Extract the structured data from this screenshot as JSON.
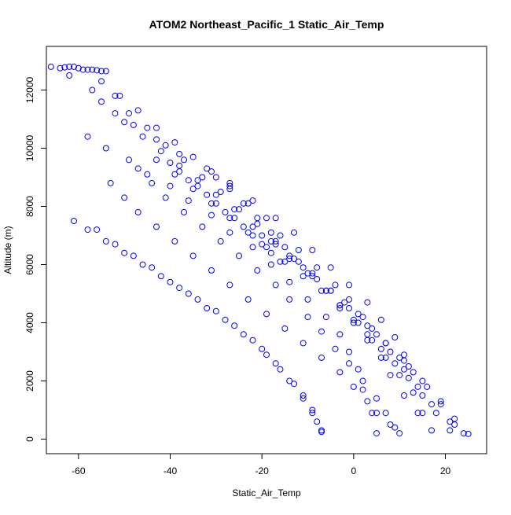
{
  "chart_data": {
    "type": "scatter",
    "title": "ATOM2 Northeast_Pacific_1 Static_Air_Temp",
    "xlabel": "Static_Air_Temp",
    "ylabel": "Altitude (m)",
    "xlim": [
      -67,
      29
    ],
    "ylim": [
      -500,
      13500
    ],
    "xticks": [
      -60,
      -40,
      -20,
      0,
      20
    ],
    "yticks": [
      0,
      2000,
      4000,
      6000,
      8000,
      10000,
      12000
    ],
    "grid": false,
    "legend": "none",
    "marker": "open-circle",
    "color": "#0000ff",
    "series": [
      {
        "x": [
          -66,
          -62,
          -57,
          -55,
          -52,
          -48,
          -43,
          -38,
          -32,
          -27,
          -22,
          -17,
          -13,
          -9,
          -5,
          -1,
          3,
          6,
          9,
          11,
          12
        ],
        "y": [
          12800,
          12500,
          12000,
          11600,
          11200,
          10800,
          10300,
          9800,
          9300,
          8800,
          8200,
          7600,
          7100,
          6500,
          5900,
          5300,
          4700,
          4100,
          3500,
          2900,
          2500
        ]
      },
      {
        "x": [
          -55,
          -51,
          -47,
          -43,
          -39,
          -35,
          -31,
          -27,
          -23,
          -19,
          -16,
          -12,
          -8,
          -4,
          -1,
          2,
          5,
          8,
          11,
          14,
          17,
          21,
          25
        ],
        "y": [
          12300,
          11800,
          11300,
          10700,
          10200,
          9700,
          9200,
          8700,
          8100,
          7600,
          7000,
          6500,
          5900,
          5300,
          4800,
          4200,
          3600,
          3000,
          2400,
          1800,
          1200,
          600,
          180
        ]
      },
      {
        "x": [
          -52,
          -49,
          -45,
          -41,
          -37,
          -33,
          -29,
          -25,
          -21,
          -17,
          -13,
          -9,
          -5,
          -1,
          3,
          7,
          11,
          15,
          19,
          22
        ],
        "y": [
          11800,
          11200,
          10700,
          10100,
          9600,
          9000,
          8500,
          7900,
          7400,
          6800,
          6200,
          5700,
          5100,
          4500,
          3900,
          3300,
          2700,
          2000,
          1300,
          500
        ]
      },
      {
        "x": [
          -50,
          -46,
          -42,
          -38,
          -34,
          -30,
          -26,
          -22,
          -18,
          -14,
          -10,
          -6,
          -3,
          0,
          3,
          6,
          8,
          11,
          14,
          17
        ],
        "y": [
          10900,
          10400,
          9900,
          9400,
          8900,
          8400,
          7900,
          7300,
          6800,
          6200,
          5700,
          5100,
          4600,
          4000,
          3400,
          2800,
          2200,
          1500,
          900,
          300
        ]
      },
      {
        "x": [
          -58,
          -54,
          -49,
          -45,
          -40,
          -36,
          -31,
          -27,
          -22,
          -18,
          -14,
          -10,
          -6,
          -3,
          -1,
          1,
          2,
          4,
          5
        ],
        "y": [
          10400,
          10000,
          9600,
          9100,
          8700,
          8200,
          7700,
          7100,
          6600,
          6000,
          5400,
          4800,
          4200,
          3600,
          3000,
          2400,
          1700,
          900,
          200
        ]
      },
      {
        "x": [
          -61,
          -58,
          -54,
          -50,
          -46,
          -42,
          -38,
          -34,
          -30,
          -26,
          -22,
          -19,
          -16,
          -13,
          -11,
          -9,
          -8,
          -7
        ],
        "y": [
          7500,
          7200,
          6800,
          6400,
          6000,
          5600,
          5200,
          4800,
          4400,
          3900,
          3400,
          2900,
          2400,
          1900,
          1400,
          1000,
          600,
          250
        ]
      },
      {
        "x": [
          -56,
          -52,
          -48,
          -44,
          -40,
          -36,
          -32,
          -28,
          -24,
          -20,
          -17,
          -14,
          -11,
          -9,
          -7
        ],
        "y": [
          7200,
          6700,
          6300,
          5900,
          5400,
          5000,
          4500,
          4100,
          3600,
          3100,
          2600,
          2000,
          1500,
          900,
          300
        ]
      },
      {
        "x": [
          -53,
          -50,
          -47,
          -43,
          -39,
          -35,
          -31,
          -27,
          -23,
          -19,
          -15,
          -11,
          -7,
          -3,
          0,
          3,
          5,
          8,
          10
        ],
        "y": [
          8800,
          8300,
          7800,
          7300,
          6800,
          6300,
          5800,
          5300,
          4800,
          4300,
          3800,
          3300,
          2800,
          2300,
          1800,
          1300,
          900,
          500,
          200
        ]
      },
      {
        "x": [
          -47,
          -44,
          -41,
          -37,
          -33,
          -29,
          -25,
          -21,
          -17,
          -14,
          -10,
          -7,
          -4,
          -1,
          2,
          5,
          7,
          9
        ],
        "y": [
          9300,
          8800,
          8300,
          7800,
          7300,
          6800,
          6300,
          5800,
          5300,
          4800,
          4200,
          3700,
          3100,
          2600,
          2000,
          1400,
          900,
          400
        ]
      },
      {
        "x": [
          -43,
          -39,
          -35,
          -31,
          -27,
          -23,
          -19,
          -15,
          -11,
          -7,
          -3,
          1,
          4,
          7,
          10,
          13,
          15
        ],
        "y": [
          9600,
          9100,
          8600,
          8100,
          7600,
          7100,
          6600,
          6100,
          5600,
          5100,
          4500,
          4000,
          3400,
          2800,
          2200,
          1600,
          900
        ]
      },
      {
        "x": [
          -30,
          -27,
          -24,
          -21,
          -18,
          -15,
          -12,
          -9,
          -6,
          -3,
          0,
          3,
          6,
          9,
          12,
          15,
          18,
          21
        ],
        "y": [
          9000,
          8600,
          8100,
          7600,
          7100,
          6600,
          6100,
          5600,
          5100,
          4600,
          4100,
          3600,
          3100,
          2600,
          2100,
          1500,
          900,
          300
        ]
      },
      {
        "x": [
          -64,
          -63,
          -62,
          -61,
          -60,
          -59,
          -58,
          -57,
          -56,
          -55,
          -54
        ],
        "y": [
          12750,
          12780,
          12800,
          12800,
          12750,
          12700,
          12700,
          12700,
          12680,
          12650,
          12650
        ]
      },
      {
        "x": [
          -40,
          -38,
          -36,
          -34,
          -32,
          -30,
          -28,
          -26,
          -24,
          -22,
          -20,
          -18,
          -16
        ],
        "y": [
          9500,
          9200,
          8900,
          8700,
          8400,
          8100,
          7800,
          7600,
          7300,
          7000,
          6700,
          6400,
          6100
        ]
      },
      {
        "x": [
          -20,
          -17,
          -14,
          -11,
          -8,
          -5,
          -2,
          1,
          4,
          7,
          10,
          13,
          16,
          19,
          22,
          24
        ],
        "y": [
          7000,
          6700,
          6300,
          5900,
          5500,
          5100,
          4700,
          4300,
          3800,
          3300,
          2800,
          2300,
          1800,
          1200,
          700,
          200
        ]
      }
    ]
  }
}
